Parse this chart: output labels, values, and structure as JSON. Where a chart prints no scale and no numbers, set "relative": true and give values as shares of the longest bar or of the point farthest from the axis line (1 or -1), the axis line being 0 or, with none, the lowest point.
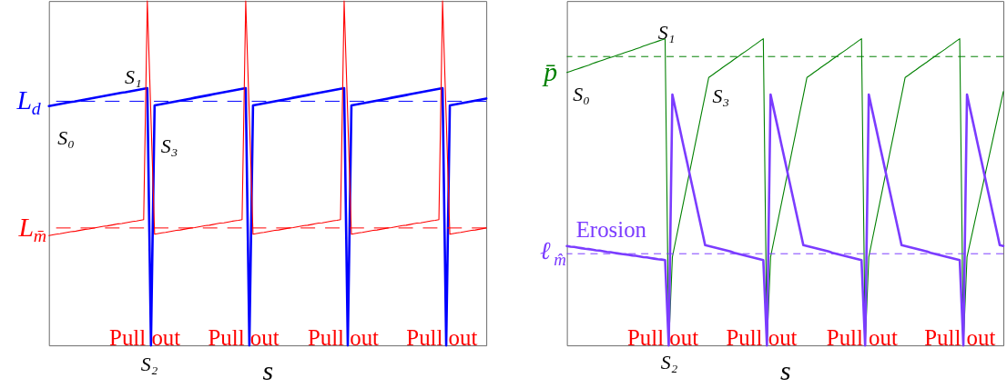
{
  "chart_data": [
    {
      "type": "line",
      "relative": true,
      "tick_labels": false,
      "xlabel": "s",
      "categories": [
        null,
        null,
        null,
        null,
        null,
        null,
        null,
        null,
        null,
        null,
        null,
        null,
        null,
        null,
        null,
        null,
        null,
        null,
        null,
        null,
        null,
        null,
        null,
        null,
        null,
        null,
        null,
        null,
        null,
        null,
        null,
        null,
        null,
        null,
        null,
        null,
        null,
        null,
        null,
        null,
        null,
        null,
        null,
        null,
        null,
        null,
        null,
        null,
        null,
        null,
        null,
        null,
        null,
        null,
        null,
        null,
        null,
        null,
        null,
        null,
        null,
        null,
        null,
        null,
        null,
        null,
        null,
        null,
        null,
        null,
        null,
        null,
        null,
        null,
        null,
        null,
        null,
        null,
        null,
        null,
        null,
        null,
        null,
        null,
        null,
        null,
        null,
        null,
        null,
        null,
        null,
        null,
        null,
        null,
        null,
        null,
        null,
        null,
        null,
        null,
        null,
        null,
        null,
        null,
        null,
        null,
        null,
        null,
        null,
        null,
        null,
        null,
        null,
        null,
        null,
        null,
        null,
        null,
        null,
        null,
        null
      ],
      "series": [
        {
          "color": "#0000ff",
          "values": [
            0.695,
            0.697,
            0.699,
            0.701,
            0.703,
            0.705,
            0.707,
            0.708,
            0.71,
            0.712,
            0.714,
            0.716,
            0.718,
            0.72,
            0.722,
            0.724,
            0.726,
            0.728,
            0.73,
            0.732,
            0.734,
            0.735,
            0.737,
            0.739,
            0.741,
            0.743,
            0.745,
            0.747,
            0,
            0.697,
            0.699,
            0.701,
            0.703,
            0.705,
            0.707,
            0.709,
            0.711,
            0.713,
            0.715,
            0.717,
            0.719,
            0.721,
            0.723,
            0.725,
            0.727,
            0.729,
            0.731,
            0.733,
            0.735,
            0.737,
            0.739,
            0.741,
            0.743,
            0.745,
            0.747,
            0,
            0.697,
            0.699,
            0.701,
            0.703,
            0.705,
            0.707,
            0.709,
            0.711,
            0.713,
            0.715,
            0.717,
            0.719,
            0.721,
            0.723,
            0.725,
            0.727,
            0.729,
            0.731,
            0.733,
            0.735,
            0.737,
            0.739,
            0.741,
            0.743,
            0.745,
            0.747,
            0,
            0.697,
            0.699,
            0.701,
            0.703,
            0.705,
            0.707,
            0.709,
            0.711,
            0.713,
            0.715,
            0.717,
            0.719,
            0.721,
            0.723,
            0.725,
            0.727,
            0.729,
            0.731,
            0.733,
            0.735,
            0.737,
            0.739,
            0.741,
            0.743,
            0.745,
            0.747,
            0,
            0.697,
            0.699,
            0.701,
            0.703,
            0.705,
            0.707,
            0.709,
            0.711,
            0.713,
            0.715,
            0.717
          ]
        },
        {
          "color": "#ff0000",
          "values": [
            0.319,
            0.321,
            0.323,
            0.324,
            0.326,
            0.328,
            0.33,
            0.331,
            0.333,
            0.335,
            0.337,
            0.338,
            0.34,
            0.342,
            0.344,
            0.346,
            0.347,
            0.349,
            0.351,
            0.353,
            0.354,
            0.356,
            0.358,
            0.36,
            0.361,
            0.363,
            0.365,
            1,
            0.662,
            0.323,
            0.325,
            0.327,
            0.328,
            0.33,
            0.332,
            0.334,
            0.335,
            0.337,
            0.339,
            0.341,
            0.342,
            0.344,
            0.346,
            0.348,
            0.349,
            0.351,
            0.353,
            0.355,
            0.356,
            0.358,
            0.36,
            0.362,
            0.363,
            0.365,
            1,
            0.662,
            0.323,
            0.325,
            0.327,
            0.328,
            0.33,
            0.332,
            0.334,
            0.335,
            0.337,
            0.339,
            0.341,
            0.342,
            0.344,
            0.346,
            0.348,
            0.349,
            0.351,
            0.353,
            0.355,
            0.356,
            0.358,
            0.36,
            0.362,
            0.363,
            0.365,
            1,
            0.662,
            0.323,
            0.325,
            0.327,
            0.328,
            0.33,
            0.332,
            0.334,
            0.335,
            0.337,
            0.339,
            0.341,
            0.342,
            0.344,
            0.346,
            0.348,
            0.349,
            0.351,
            0.353,
            0.355,
            0.356,
            0.358,
            0.36,
            0.362,
            0.363,
            0.365,
            1,
            0.662,
            0.323,
            0.325,
            0.327,
            0.328,
            0.33,
            0.332,
            0.334,
            0.335,
            0.337,
            0.339,
            0.341
          ]
        }
      ],
      "ref_lines": [
        {
          "axis": "y",
          "value": 0.709,
          "label": "L$_{d}$",
          "color": "#0000ff",
          "line_style": "dashed"
        },
        {
          "axis": "y",
          "value": 0.341,
          "label": "L$_{m̄}$",
          "color": "#ff0000",
          "line_style": "dashed"
        }
      ],
      "annotations": [
        "S₀",
        "S₁",
        "S₂",
        "S₃",
        "Pull out",
        "Pull out",
        "Pull out",
        "Pull out"
      ]
    },
    {
      "type": "line",
      "relative": true,
      "tick_labels": false,
      "xlabel": "s",
      "categories": [
        null,
        null,
        null,
        null,
        null,
        null,
        null,
        null,
        null,
        null,
        null,
        null,
        null,
        null,
        null,
        null,
        null,
        null,
        null,
        null,
        null,
        null,
        null,
        null,
        null,
        null,
        null,
        null,
        null,
        null,
        null,
        null,
        null,
        null,
        null,
        null,
        null,
        null,
        null,
        null,
        null,
        null,
        null,
        null,
        null,
        null,
        null,
        null,
        null,
        null,
        null,
        null,
        null,
        null,
        null,
        null,
        null,
        null,
        null,
        null,
        null,
        null,
        null,
        null,
        null,
        null,
        null,
        null,
        null,
        null,
        null,
        null,
        null,
        null,
        null,
        null,
        null,
        null,
        null,
        null,
        null,
        null,
        null,
        null,
        null,
        null,
        null,
        null,
        null,
        null,
        null,
        null,
        null,
        null,
        null,
        null,
        null,
        null,
        null,
        null,
        null,
        null,
        null,
        null,
        null,
        null,
        null,
        null,
        null,
        null,
        null,
        null,
        null,
        null,
        null,
        null,
        null,
        null,
        null,
        null,
        null
      ],
      "series": [
        {
          "color": "#008000",
          "values": [
            0.89,
            0.894,
            0.898,
            0.902,
            0.906,
            0.91,
            0.914,
            0.919,
            0.923,
            0.927,
            0.931,
            0.935,
            0.939,
            0.943,
            0.947,
            0.951,
            0.955,
            0.959,
            0.963,
            0.967,
            0.971,
            0.976,
            0.98,
            0.984,
            0.988,
            0.992,
            0.996,
            1,
            0,
            0.288,
            0.347,
            0.405,
            0.464,
            0.522,
            0.581,
            0.64,
            0.698,
            0.757,
            0.815,
            0.874,
            0.882,
            0.891,
            0.899,
            0.908,
            0.916,
            0.924,
            0.933,
            0.941,
            0.95,
            0.958,
            0.966,
            0.975,
            0.983,
            0.992,
            1,
            0,
            0.288,
            0.347,
            0.405,
            0.464,
            0.522,
            0.581,
            0.64,
            0.698,
            0.757,
            0.815,
            0.874,
            0.882,
            0.891,
            0.899,
            0.908,
            0.916,
            0.924,
            0.933,
            0.941,
            0.95,
            0.958,
            0.966,
            0.975,
            0.983,
            0.992,
            1,
            0,
            0.288,
            0.347,
            0.405,
            0.464,
            0.522,
            0.581,
            0.64,
            0.698,
            0.757,
            0.815,
            0.874,
            0.882,
            0.891,
            0.899,
            0.908,
            0.916,
            0.924,
            0.933,
            0.941,
            0.95,
            0.958,
            0.966,
            0.975,
            0.983,
            0.992,
            1,
            0,
            0.288,
            0.342,
            0.396,
            0.45,
            0.504,
            0.558,
            0.612,
            0.666,
            0.72,
            0.774,
            0.828
          ]
        },
        {
          "name": "Erosion",
          "color": "#7b3cff",
          "values": [
            0.324,
            0.322,
            0.321,
            0.319,
            0.317,
            0.315,
            0.314,
            0.312,
            0.31,
            0.309,
            0.307,
            0.305,
            0.304,
            0.302,
            0.3,
            0.298,
            0.297,
            0.295,
            0.293,
            0.292,
            0.29,
            0.288,
            0.287,
            0.285,
            0.283,
            0.281,
            0.28,
            0.278,
            0,
            0.818,
            0.763,
            0.709,
            0.654,
            0.6,
            0.545,
            0.491,
            0.436,
            0.382,
            0.327,
            0.324,
            0.321,
            0.318,
            0.315,
            0.312,
            0.309,
            0.306,
            0.302,
            0.299,
            0.296,
            0.293,
            0.29,
            0.287,
            0.284,
            0.281,
            0.278,
            0,
            0.818,
            0.763,
            0.709,
            0.654,
            0.6,
            0.545,
            0.491,
            0.436,
            0.382,
            0.327,
            0.324,
            0.321,
            0.318,
            0.315,
            0.312,
            0.309,
            0.306,
            0.302,
            0.299,
            0.296,
            0.293,
            0.29,
            0.287,
            0.284,
            0.281,
            0.278,
            0,
            0.818,
            0.763,
            0.709,
            0.654,
            0.6,
            0.545,
            0.491,
            0.436,
            0.382,
            0.327,
            0.324,
            0.321,
            0.318,
            0.315,
            0.312,
            0.309,
            0.306,
            0.302,
            0.299,
            0.296,
            0.293,
            0.29,
            0.287,
            0.284,
            0.281,
            0.278,
            0,
            0.818,
            0.763,
            0.709,
            0.654,
            0.6,
            0.545,
            0.491,
            0.436,
            0.382,
            0.327,
            0.324
          ]
        }
      ],
      "ref_lines": [
        {
          "axis": "y",
          "value": 0.942,
          "label": "p̄",
          "color": "#008000",
          "line_style": "dashed"
        },
        {
          "axis": "y",
          "value": 0.299,
          "label": "ℓ$_{m̂}$",
          "color": "#7b3cff",
          "line_style": "dashed"
        }
      ],
      "annotations": [
        "S₀",
        "S₁",
        "S₂",
        "S₃",
        "Pull out",
        "Pull out",
        "Pull out",
        "Pull out"
      ]
    }
  ]
}
